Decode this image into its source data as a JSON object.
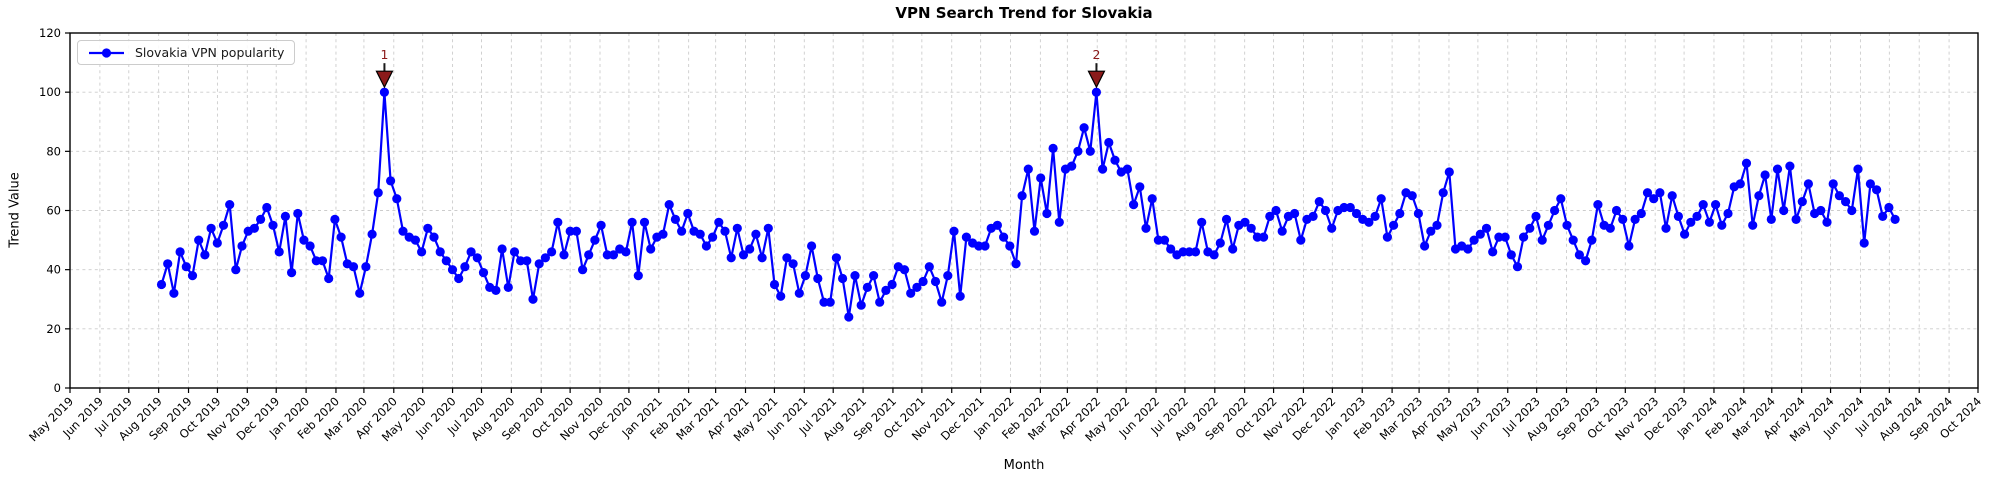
{
  "chart_data": {
    "type": "line",
    "title": "VPN Search Trend for Slovakia",
    "xlabel": "Month",
    "ylabel": "Trend Value",
    "legend": [
      "Slovakia VPN popularity"
    ],
    "legend_position": "upper left",
    "grid": true,
    "grid_style": "dashed",
    "ylim": [
      0,
      120
    ],
    "yticks": [
      0,
      20,
      40,
      60,
      80,
      100,
      120
    ],
    "x_axis_start": "2019-05-01",
    "x_axis_end": "2024-10-01",
    "x_tick_labels": [
      "May 2019",
      "Jun 2019",
      "Jul 2019",
      "Aug 2019",
      "Sep 2019",
      "Oct 2019",
      "Nov 2019",
      "Dec 2019",
      "Jan 2020",
      "Feb 2020",
      "Mar 2020",
      "Apr 2020",
      "May 2020",
      "Jun 2020",
      "Jul 2020",
      "Aug 2020",
      "Sep 2020",
      "Oct 2020",
      "Nov 2020",
      "Dec 2020",
      "Jan 2021",
      "Feb 2021",
      "Mar 2021",
      "Apr 2021",
      "May 2021",
      "Jun 2021",
      "Jul 2021",
      "Aug 2021",
      "Sep 2021",
      "Oct 2021",
      "Nov 2021",
      "Dec 2021",
      "Jan 2022",
      "Feb 2022",
      "Mar 2022",
      "Apr 2022",
      "May 2022",
      "Jun 2022",
      "Jul 2022",
      "Aug 2022",
      "Sep 2022",
      "Oct 2022",
      "Nov 2022",
      "Dec 2022",
      "Jan 2023",
      "Feb 2023",
      "Mar 2023",
      "Apr 2023",
      "May 2023",
      "Jun 2023",
      "Jul 2023",
      "Aug 2023",
      "Sep 2023",
      "Oct 2023",
      "Nov 2023",
      "Dec 2023",
      "Jan 2024",
      "Feb 2024",
      "Mar 2024",
      "Apr 2024",
      "May 2024",
      "Jun 2024",
      "Jul 2024",
      "Aug 2024",
      "Sep 2024",
      "Oct 2024"
    ],
    "series": [
      {
        "name": "Slovakia VPN popularity",
        "color": "#0000FF",
        "marker": "circle",
        "frequency": "weekly",
        "x_start": "2019-08-04",
        "x_end": "2024-07-07",
        "values": [
          35,
          42,
          32,
          46,
          41,
          38,
          50,
          45,
          54,
          49,
          55,
          62,
          40,
          48,
          53,
          54,
          57,
          61,
          55,
          46,
          58,
          39,
          59,
          50,
          48,
          43,
          43,
          37,
          57,
          51,
          42,
          41,
          32,
          41,
          52,
          66,
          100,
          70,
          64,
          53,
          51,
          50,
          46,
          54,
          51,
          46,
          43,
          40,
          37,
          41,
          46,
          44,
          39,
          34,
          33,
          47,
          34,
          46,
          43,
          43,
          30,
          42,
          44,
          46,
          56,
          45,
          53,
          53,
          40,
          45,
          50,
          55,
          45,
          45,
          47,
          46,
          56,
          38,
          56,
          47,
          51,
          52,
          62,
          57,
          53,
          59,
          53,
          52,
          48,
          51,
          56,
          53,
          44,
          54,
          45,
          47,
          52,
          44,
          54,
          35,
          31,
          44,
          42,
          32,
          38,
          48,
          37,
          29,
          29,
          44,
          37,
          24,
          38,
          28,
          34,
          38,
          29,
          33,
          35,
          41,
          40,
          32,
          34,
          36,
          41,
          36,
          29,
          38,
          53,
          31,
          51,
          49,
          48,
          48,
          54,
          55,
          51,
          48,
          42,
          65,
          74,
          53,
          71,
          59,
          81,
          56,
          74,
          75,
          80,
          88,
          80,
          100,
          74,
          83,
          77,
          73,
          74,
          62,
          68,
          54,
          64,
          50,
          50,
          47,
          45,
          46,
          46,
          46,
          56,
          46,
          45,
          49,
          57,
          47,
          55,
          56,
          54,
          51,
          51,
          58,
          60,
          53,
          58,
          59,
          50,
          57,
          58,
          63,
          60,
          54,
          60,
          61,
          61,
          59,
          57,
          56,
          58,
          64,
          51,
          55,
          59,
          66,
          65,
          59,
          48,
          53,
          55,
          66,
          73,
          47,
          48,
          47,
          50,
          52,
          54,
          46,
          51,
          51,
          45,
          41,
          51,
          54,
          58,
          50,
          55,
          60,
          64,
          55,
          50,
          45,
          43,
          50,
          62,
          55,
          54,
          60,
          57,
          48,
          57,
          59,
          66,
          64,
          66,
          54,
          65,
          58,
          52,
          56,
          58,
          62,
          56,
          62,
          55,
          59,
          68,
          69,
          76,
          55,
          65,
          72,
          57,
          74,
          60,
          75,
          57,
          63,
          69,
          59,
          60,
          56,
          69,
          65,
          63,
          60,
          74,
          49,
          69,
          67,
          58,
          61,
          57
        ]
      }
    ],
    "annotations": [
      {
        "label": "1",
        "point_index": 36,
        "value": 100,
        "color": "#8B1A1A"
      },
      {
        "label": "2",
        "point_index": 151,
        "value": 100,
        "color": "#8B1A1A"
      }
    ],
    "colors": {
      "grid": "#CCCCCC",
      "axis": "#000000",
      "background": "#FFFFFF",
      "tick_label": "#000000"
    }
  }
}
